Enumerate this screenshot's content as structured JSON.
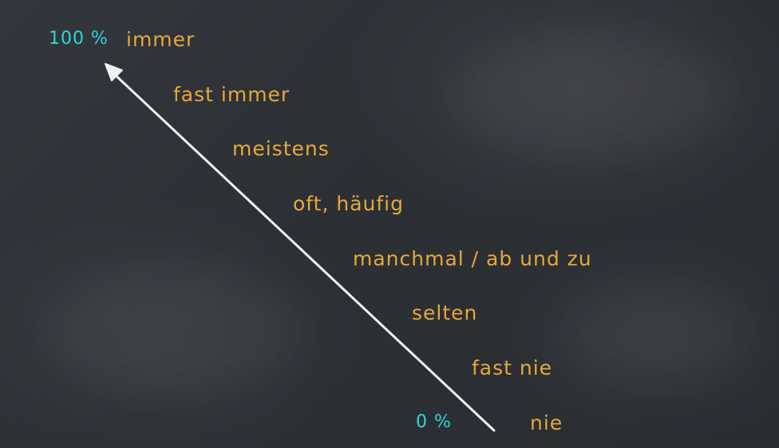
{
  "scale": {
    "top_percent": "100 %",
    "bottom_percent": "0 %",
    "items": [
      {
        "label": "immer"
      },
      {
        "label": "fast immer"
      },
      {
        "label": "meistens"
      },
      {
        "label": "oft, häufig"
      },
      {
        "label": "manchmal / ab und zu"
      },
      {
        "label": "selten"
      },
      {
        "label": "fast nie"
      },
      {
        "label": "nie"
      }
    ]
  },
  "colors": {
    "board": "#2e3237",
    "label_text": "#e5a83a",
    "percent_text": "#2fd6d9",
    "arrow": "#f2f2f2"
  }
}
